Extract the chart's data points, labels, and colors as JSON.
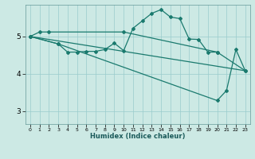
{
  "xlabel": "Humidex (Indice chaleur)",
  "bg_color": "#cce9e4",
  "grid_color": "#99cccc",
  "line_color": "#1a7a6e",
  "xlim": [
    -0.5,
    23.5
  ],
  "ylim": [
    2.65,
    5.85
  ],
  "yticks": [
    3,
    4,
    5
  ],
  "xticks": [
    0,
    1,
    2,
    3,
    4,
    5,
    6,
    7,
    8,
    9,
    10,
    11,
    12,
    13,
    14,
    15,
    16,
    17,
    18,
    19,
    20,
    21,
    22,
    23
  ],
  "series1": {
    "x": [
      0,
      1,
      2,
      10,
      20
    ],
    "y": [
      5.0,
      5.12,
      5.12,
      5.12,
      4.58
    ],
    "markers": true
  },
  "series2": {
    "x": [
      0,
      3,
      4,
      5,
      6,
      7,
      8,
      9,
      10,
      11,
      12,
      13,
      14,
      15,
      16,
      17,
      18,
      19,
      20,
      23
    ],
    "y": [
      5.0,
      4.8,
      4.58,
      4.58,
      4.6,
      4.6,
      4.65,
      4.82,
      4.62,
      5.22,
      5.42,
      5.62,
      5.72,
      5.52,
      5.48,
      4.93,
      4.92,
      4.58,
      4.58,
      4.08
    ],
    "markers": true
  },
  "series3": {
    "x": [
      0,
      23
    ],
    "y": [
      5.0,
      4.08
    ],
    "markers": false
  },
  "series4": {
    "x": [
      0,
      3,
      20,
      21,
      22,
      23
    ],
    "y": [
      5.0,
      4.8,
      3.28,
      3.55,
      4.65,
      4.08
    ],
    "markers": true
  }
}
